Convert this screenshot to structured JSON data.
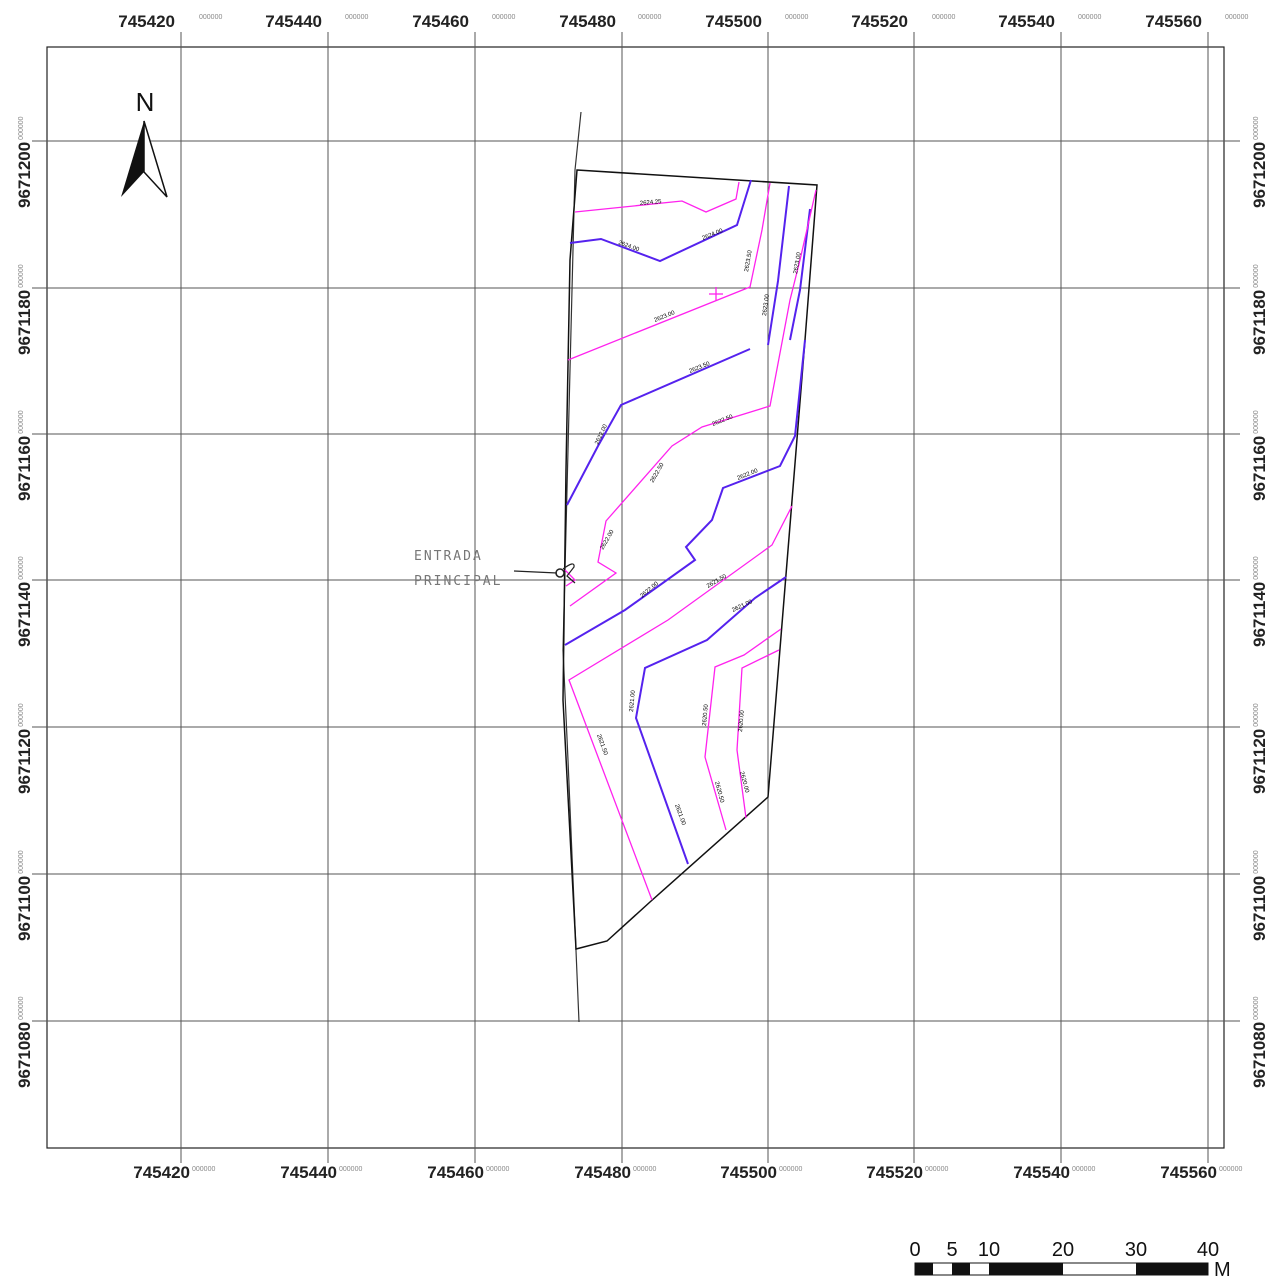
{
  "x_ticks": [
    {
      "value": "745420",
      "decimals": "000000"
    },
    {
      "value": "745440",
      "decimals": "000000"
    },
    {
      "value": "745460",
      "decimals": "000000"
    },
    {
      "value": "745480",
      "decimals": "000000"
    },
    {
      "value": "745500",
      "decimals": "000000"
    },
    {
      "value": "745520",
      "decimals": "000000"
    },
    {
      "value": "745540",
      "decimals": "000000"
    },
    {
      "value": "745560",
      "decimals": "000000"
    }
  ],
  "y_ticks": [
    {
      "value": "9671200",
      "decimals": "000000"
    },
    {
      "value": "9671180",
      "decimals": "000000"
    },
    {
      "value": "9671160",
      "decimals": "000000"
    },
    {
      "value": "9671140",
      "decimals": "000000"
    },
    {
      "value": "9671120",
      "decimals": "000000"
    },
    {
      "value": "9671100",
      "decimals": "000000"
    },
    {
      "value": "9671080",
      "decimals": "000000"
    }
  ],
  "north_arrow": {
    "letter": "N",
    "icon": "north-arrow-icon"
  },
  "entrance": {
    "line1": "ENTRADA",
    "line2": "PRINCIPAL"
  },
  "contour_labels": [
    "2624.25",
    "2624.00",
    "2624.00",
    "2623.50",
    "2623.00",
    "2623.00",
    "2623.00",
    "2623.50",
    "2622.50",
    "2622.00",
    "2622.50",
    "2622.00",
    "2622.00",
    "2622.00",
    "2621.50",
    "2621.00",
    "2621.00",
    "2620.50",
    "2620.00",
    "2621.50",
    "2621.00",
    "2620.50",
    "2620.00"
  ],
  "scale_bar": {
    "labels": [
      "0",
      "5",
      "10",
      "20",
      "30",
      "40"
    ],
    "unit": "M"
  },
  "colors": {
    "boundary": "#111111",
    "major_contour": "#5522ee",
    "minor_contour": "#ff22ee",
    "grid": "#555555"
  }
}
